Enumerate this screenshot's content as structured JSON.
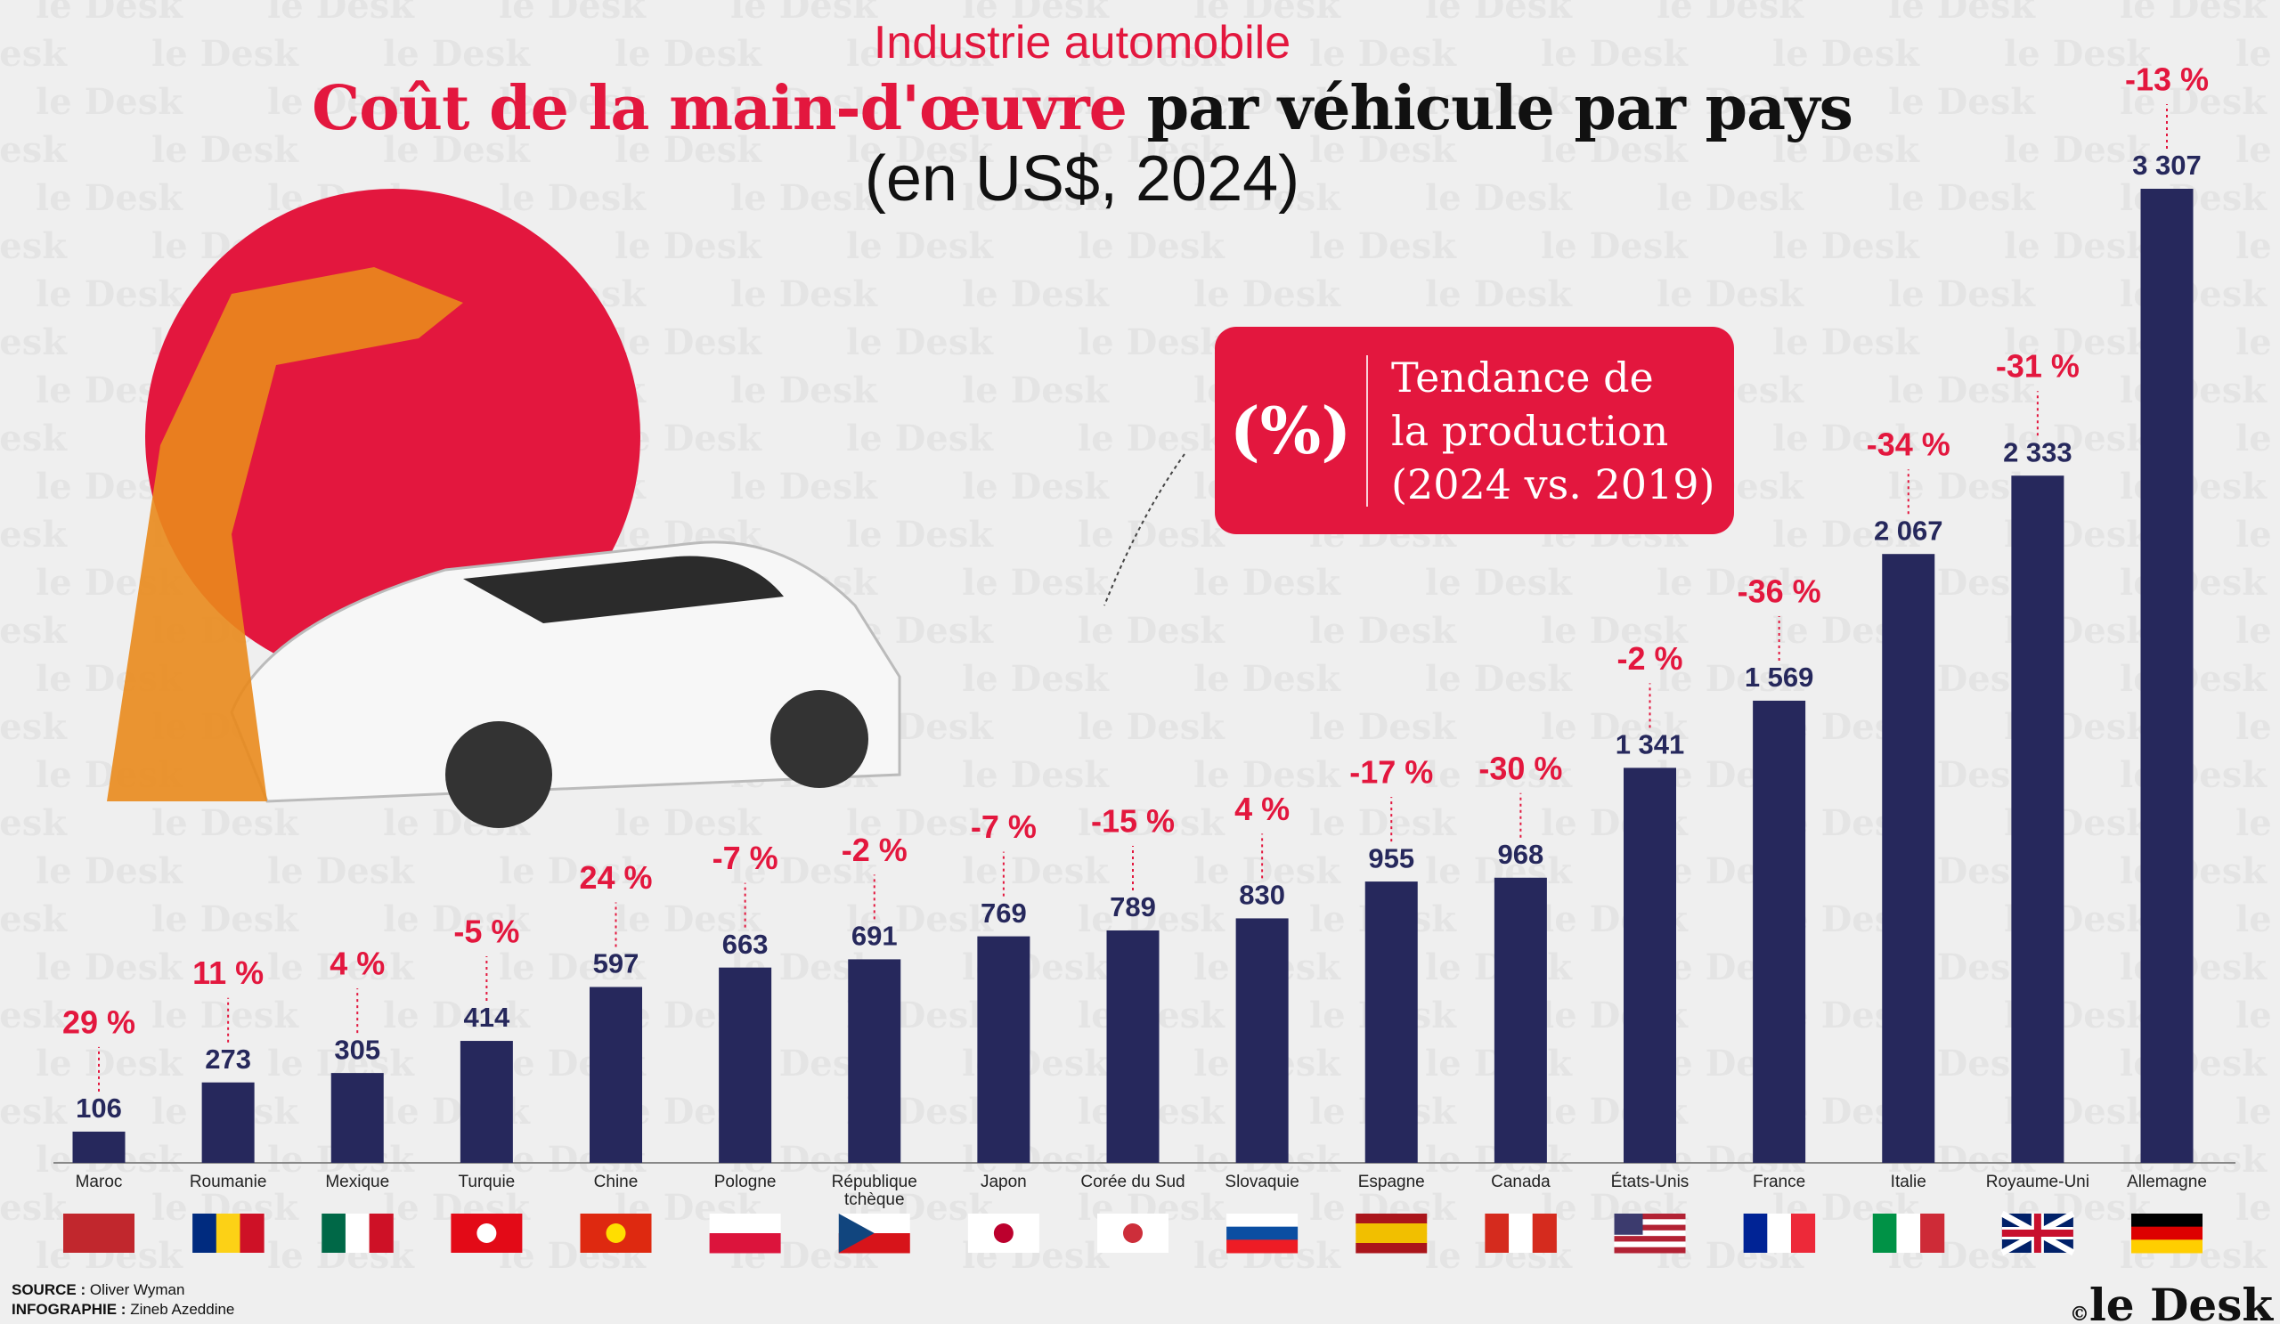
{
  "header": {
    "kicker": "Industrie automobile",
    "title_highlight": "Coût de la main-d'œuvre",
    "title_rest": "par véhicule par pays",
    "subtitle": "(en US$, 2024)"
  },
  "legend": {
    "symbol": "(%)",
    "lines": [
      "Tendance de",
      "la production",
      "(2024 vs. 2019)"
    ]
  },
  "chart_data": {
    "type": "bar",
    "color": "#26285c",
    "categories": [
      "Maroc",
      "Roumanie",
      "Mexique",
      "Turquie",
      "Chine",
      "Pologne",
      "République tchèque",
      "Japon",
      "Corée du Sud",
      "Slovaquie",
      "Espagne",
      "Canada",
      "États-Unis",
      "France",
      "Italie",
      "Royaume-Uni",
      "Allemagne"
    ],
    "values": [
      106,
      273,
      305,
      414,
      597,
      663,
      691,
      769,
      789,
      830,
      955,
      968,
      1341,
      1569,
      2067,
      2333,
      3307
    ],
    "value_labels": [
      "106",
      "273",
      "305",
      "414",
      "597",
      "663",
      "691",
      "769",
      "789",
      "830",
      "955",
      "968",
      "1 341",
      "1 569",
      "2 067",
      "2 333",
      "3 307"
    ],
    "trend": {
      "color": "#e3173e",
      "values": [
        29,
        11,
        4,
        -5,
        24,
        -7,
        -2,
        -7,
        -15,
        4,
        -17,
        -30,
        -2,
        -36,
        -34,
        -31,
        -13
      ],
      "value_labels": [
        "29 %",
        "11 %",
        "4 %",
        "-5 %",
        "24 %",
        "-7 %",
        "-2 %",
        "-7 %",
        "-15 %",
        "4 %",
        "-17 %",
        "-30 %",
        "-2 %",
        "-36 %",
        "-34 %",
        "-31 %",
        "-13 %"
      ]
    }
  },
  "footer": {
    "source_label": "SOURCE :",
    "source": "Oliver Wyman",
    "credit_label": "INFOGRAPHIE :",
    "credit": "Zineb Azeddine",
    "copyright": "©",
    "logo": "le Desk"
  },
  "watermark": "le Desk"
}
